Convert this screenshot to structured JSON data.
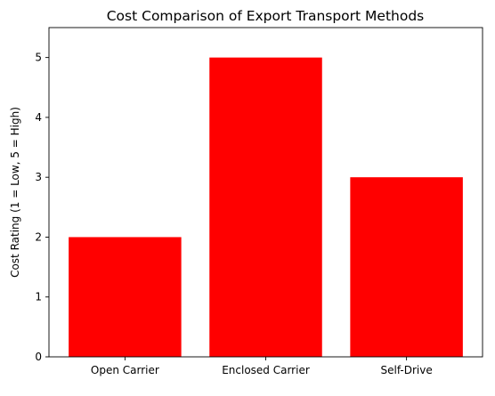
{
  "chart_data": {
    "type": "bar",
    "title": "Cost Comparison of Export Transport Methods",
    "xlabel": "",
    "ylabel": "Cost Rating (1 = Low, 5 = High)",
    "categories": [
      "Open Carrier",
      "Enclosed Carrier",
      "Self-Drive"
    ],
    "values": [
      2,
      5,
      3
    ],
    "ylim": [
      0,
      5.5
    ],
    "yticks": [
      0,
      1,
      2,
      3,
      4,
      5
    ],
    "bar_color": "#ff0000",
    "grid": false,
    "legend": "none"
  }
}
